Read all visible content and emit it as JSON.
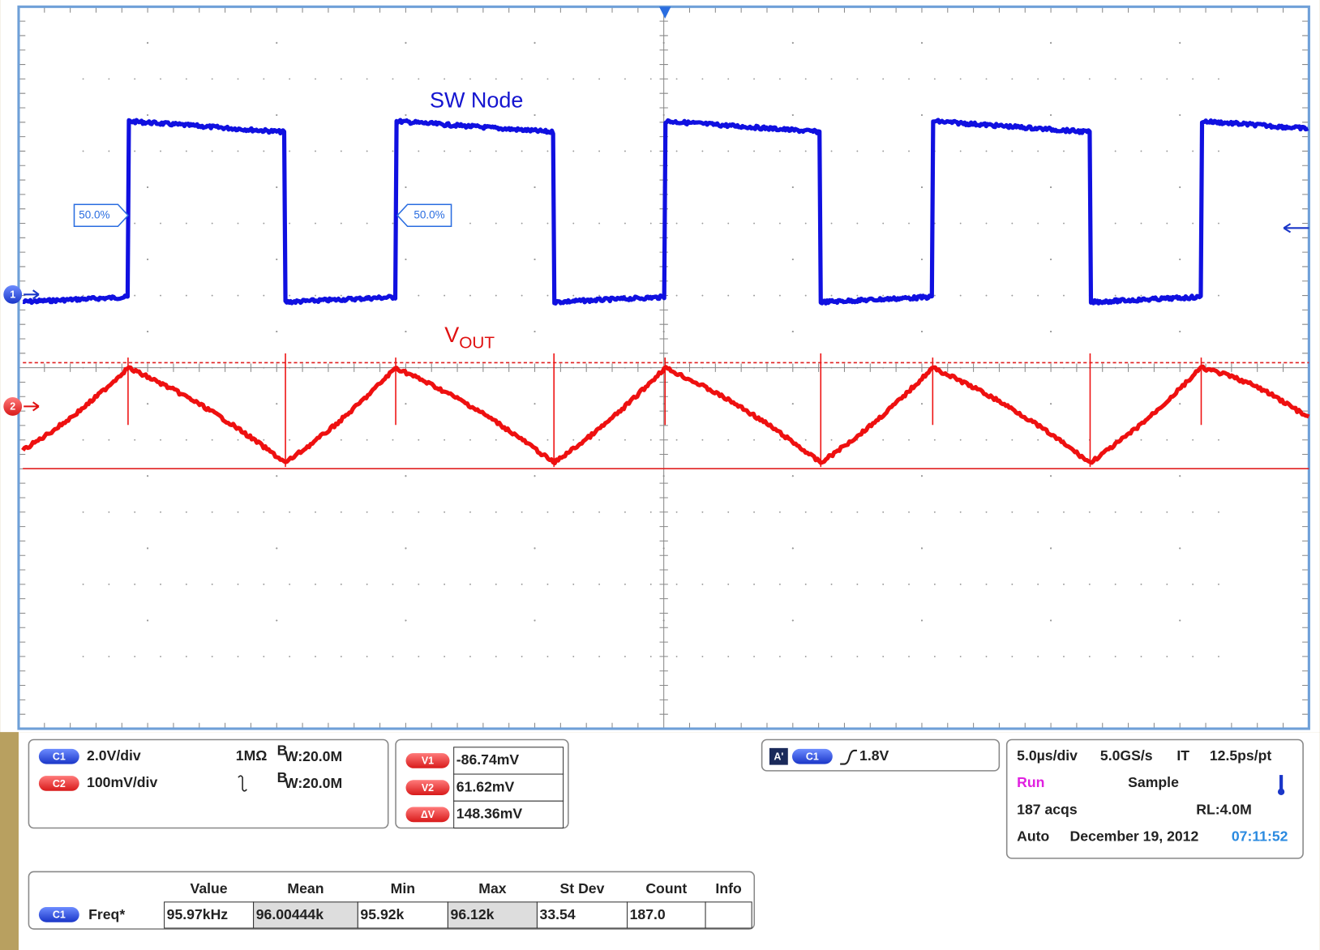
{
  "display": {
    "sw_node": "SW Node",
    "vout": "V",
    "vout_sub": "OUT",
    "markers": [
      "1",
      "2"
    ],
    "percent_markers": [
      "50.0%",
      "50.0%"
    ]
  },
  "channels": [
    {
      "badge": "C1",
      "scale": "2.0V/div",
      "coupling": "1MΩ",
      "bw_b": "B",
      "bw": "W:20.0M"
    },
    {
      "badge": "C2",
      "scale": "100mV/div",
      "bw_b": "B",
      "bw": "W:20.0M"
    }
  ],
  "cursors": [
    {
      "badge": "V1",
      "value": "-86.74mV"
    },
    {
      "badge": "V2",
      "value": "61.62mV"
    },
    {
      "badge": "ΔV",
      "value": "148.36mV"
    }
  ],
  "trigger": {
    "mode": "A'",
    "source": "C1",
    "level": "1.8V"
  },
  "timebase": {
    "scale": "5.0µs/div",
    "rate": "5.0GS/s",
    "mode": "IT",
    "resolution": "12.5ps/pt",
    "state": "Run",
    "acquisition": "Sample",
    "acqs": "187 acqs",
    "record_length": "RL:4.0M",
    "trigger_mode": "Auto",
    "date": "December 19, 2012",
    "time": "07:11:52"
  },
  "measurements": {
    "headers": [
      "Value",
      "Mean",
      "Min",
      "Max",
      "St Dev",
      "Count",
      "Info"
    ],
    "rows": [
      {
        "source": "C1",
        "name": "Freq*",
        "cells": [
          "95.97kHz",
          "96.00444k",
          "95.92k",
          "96.12k",
          "33.54",
          "187.0"
        ]
      }
    ]
  }
}
